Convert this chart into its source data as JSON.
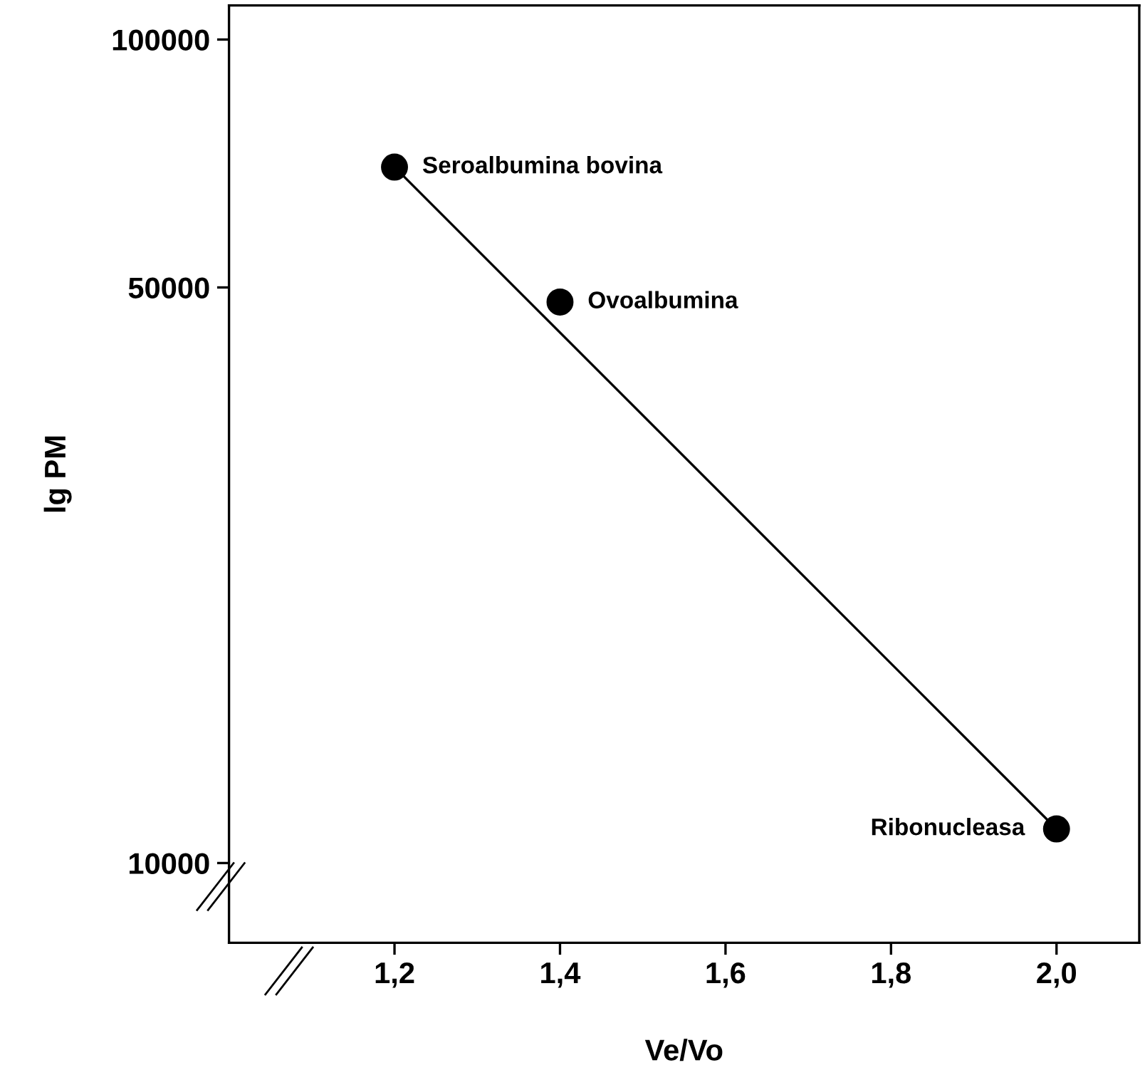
{
  "chart_data": {
    "type": "scatter",
    "xlabel": "Ve/Vo",
    "ylabel": "lg PM",
    "log": "y",
    "series": [
      {
        "color": "#000000",
        "marker": "circle",
        "x": [
          1.2,
          1.4,
          2.0
        ],
        "values": [
          70000,
          48000,
          11000
        ]
      },
      {
        "type": "line",
        "color": "#000000",
        "line_style": "solid",
        "x": [
          1.2,
          2.0
        ],
        "values": [
          70000,
          11000
        ]
      }
    ],
    "annotations": [
      {
        "text": "Seroalbumina bovina",
        "x": 1.2,
        "y": 70000
      },
      {
        "text": "Ovoalbumina",
        "x": 1.4,
        "y": 48000
      },
      {
        "text": "Ribonucleasa",
        "x": 2.0,
        "y": 11000
      }
    ],
    "xlim": [
      1.0,
      2.1
    ],
    "xticks": [
      {
        "value": 1.2,
        "label": "1,2"
      },
      {
        "value": 1.4,
        "label": "1,4"
      },
      {
        "value": 1.6,
        "label": "1,6"
      },
      {
        "value": 1.8,
        "label": "1,8"
      },
      {
        "value": 2.0,
        "label": "2,0"
      }
    ],
    "ylim": [
      8000,
      110000
    ],
    "yticks": [
      10000,
      50000,
      100000
    ],
    "grid": false,
    "legend": false
  }
}
